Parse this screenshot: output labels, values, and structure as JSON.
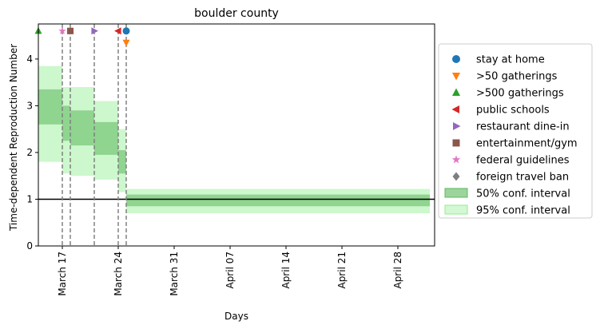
{
  "chart_data": {
    "type": "area",
    "title": "boulder county",
    "xlabel": "Days",
    "ylabel": "Time-dependent Reproduction Number",
    "x_range": [
      "2020-03-14",
      "2020-03-31"
    ],
    "ylim": [
      0,
      4.75
    ],
    "x_ticks": [
      {
        "date": "2020-03-17",
        "label": "March 17"
      },
      {
        "date": "2020-03-24",
        "label": "March 24"
      },
      {
        "date": "2020-03-31",
        "label": "March 31"
      },
      {
        "date": "2020-04-07",
        "label": "April 07"
      },
      {
        "date": "2020-04-14",
        "label": "April 14"
      },
      {
        "date": "2020-04-21",
        "label": "April 21"
      },
      {
        "date": "2020-04-28",
        "label": "April 28"
      }
    ],
    "y_ticks": [
      "0",
      "1",
      "2",
      "3",
      "4"
    ],
    "reference_line": 1,
    "ci50": [
      {
        "start": "2020-03-14",
        "end": "2020-03-17",
        "low": 2.6,
        "high": 3.35
      },
      {
        "start": "2020-03-17",
        "end": "2020-03-18",
        "low": 2.25,
        "high": 3.0
      },
      {
        "start": "2020-03-18",
        "end": "2020-03-21",
        "low": 2.15,
        "high": 2.9
      },
      {
        "start": "2020-03-21",
        "end": "2020-03-24",
        "low": 1.95,
        "high": 2.65
      },
      {
        "start": "2020-03-24",
        "end": "2020-03-25",
        "low": 1.55,
        "high": 2.05
      },
      {
        "start": "2020-03-25",
        "end": "2020-05-02",
        "low": 0.85,
        "high": 1.1
      }
    ],
    "ci95": [
      {
        "start": "2020-03-14",
        "end": "2020-03-17",
        "low": 1.8,
        "high": 3.85
      },
      {
        "start": "2020-03-17",
        "end": "2020-03-18",
        "low": 1.55,
        "high": 3.4
      },
      {
        "start": "2020-03-18",
        "end": "2020-03-21",
        "low": 1.5,
        "high": 3.4
      },
      {
        "start": "2020-03-21",
        "end": "2020-03-24",
        "low": 1.42,
        "high": 3.1
      },
      {
        "start": "2020-03-24",
        "end": "2020-03-25",
        "low": 1.15,
        "high": 2.5
      },
      {
        "start": "2020-03-25",
        "end": "2020-05-02",
        "low": 0.7,
        "high": 1.22
      }
    ],
    "interventions": [
      {
        "name": "stay at home",
        "date": "2020-03-25",
        "y": 4.6,
        "marker": "circle",
        "color": "#1f77b4"
      },
      {
        "name": ">50 gatherings",
        "date": "2020-03-25",
        "y": 4.35,
        "marker": "triangle-down",
        "color": "#ff7f0e"
      },
      {
        "name": ">500 gatherings",
        "date": "2020-03-14",
        "y": 4.6,
        "marker": "triangle-up",
        "color": "#2ca02c"
      },
      {
        "name": "public schools",
        "date": "2020-03-24",
        "y": 4.6,
        "marker": "triangle-left",
        "color": "#d62728"
      },
      {
        "name": "restaurant dine-in",
        "date": "2020-03-21",
        "y": 4.6,
        "marker": "triangle-right",
        "color": "#9467bd"
      },
      {
        "name": "entertainment/gym",
        "date": "2020-03-18",
        "y": 4.6,
        "marker": "square",
        "color": "#8c564b"
      },
      {
        "name": "federal guidelines",
        "date": "2020-03-17",
        "y": 4.6,
        "marker": "star",
        "color": "#e377c2"
      },
      {
        "name": "foreign travel ban",
        "date": null,
        "y": null,
        "marker": "diamond",
        "color": "#7f7f7f"
      }
    ],
    "vlines": [
      "2020-03-17",
      "2020-03-18",
      "2020-03-21",
      "2020-03-24",
      "2020-03-25"
    ],
    "legend": {
      "placement": "right",
      "entries": [
        {
          "label": "stay at home",
          "kind": "marker",
          "marker": "circle",
          "color": "#1f77b4"
        },
        {
          "label": ">50 gatherings",
          "kind": "marker",
          "marker": "triangle-down",
          "color": "#ff7f0e"
        },
        {
          "label": ">500 gatherings",
          "kind": "marker",
          "marker": "triangle-up",
          "color": "#2ca02c"
        },
        {
          "label": "public schools",
          "kind": "marker",
          "marker": "triangle-left",
          "color": "#d62728"
        },
        {
          "label": "restaurant dine-in",
          "kind": "marker",
          "marker": "triangle-right",
          "color": "#9467bd"
        },
        {
          "label": "entertainment/gym",
          "kind": "marker",
          "marker": "square",
          "color": "#8c564b"
        },
        {
          "label": "federal guidelines",
          "kind": "marker",
          "marker": "star",
          "color": "#e377c2"
        },
        {
          "label": "foreign travel ban",
          "kind": "marker",
          "marker": "diamond",
          "color": "#7f7f7f"
        },
        {
          "label": "50% conf. interval",
          "kind": "patch",
          "color": "#5cb85c"
        },
        {
          "label": "95% conf. interval",
          "kind": "patch",
          "color": "#90ee90"
        }
      ]
    },
    "colors": {
      "ci50_fill": "#5cb85c",
      "ci95_fill": "#90ee90",
      "reference_line": "#000000",
      "vline": "#808080"
    }
  }
}
